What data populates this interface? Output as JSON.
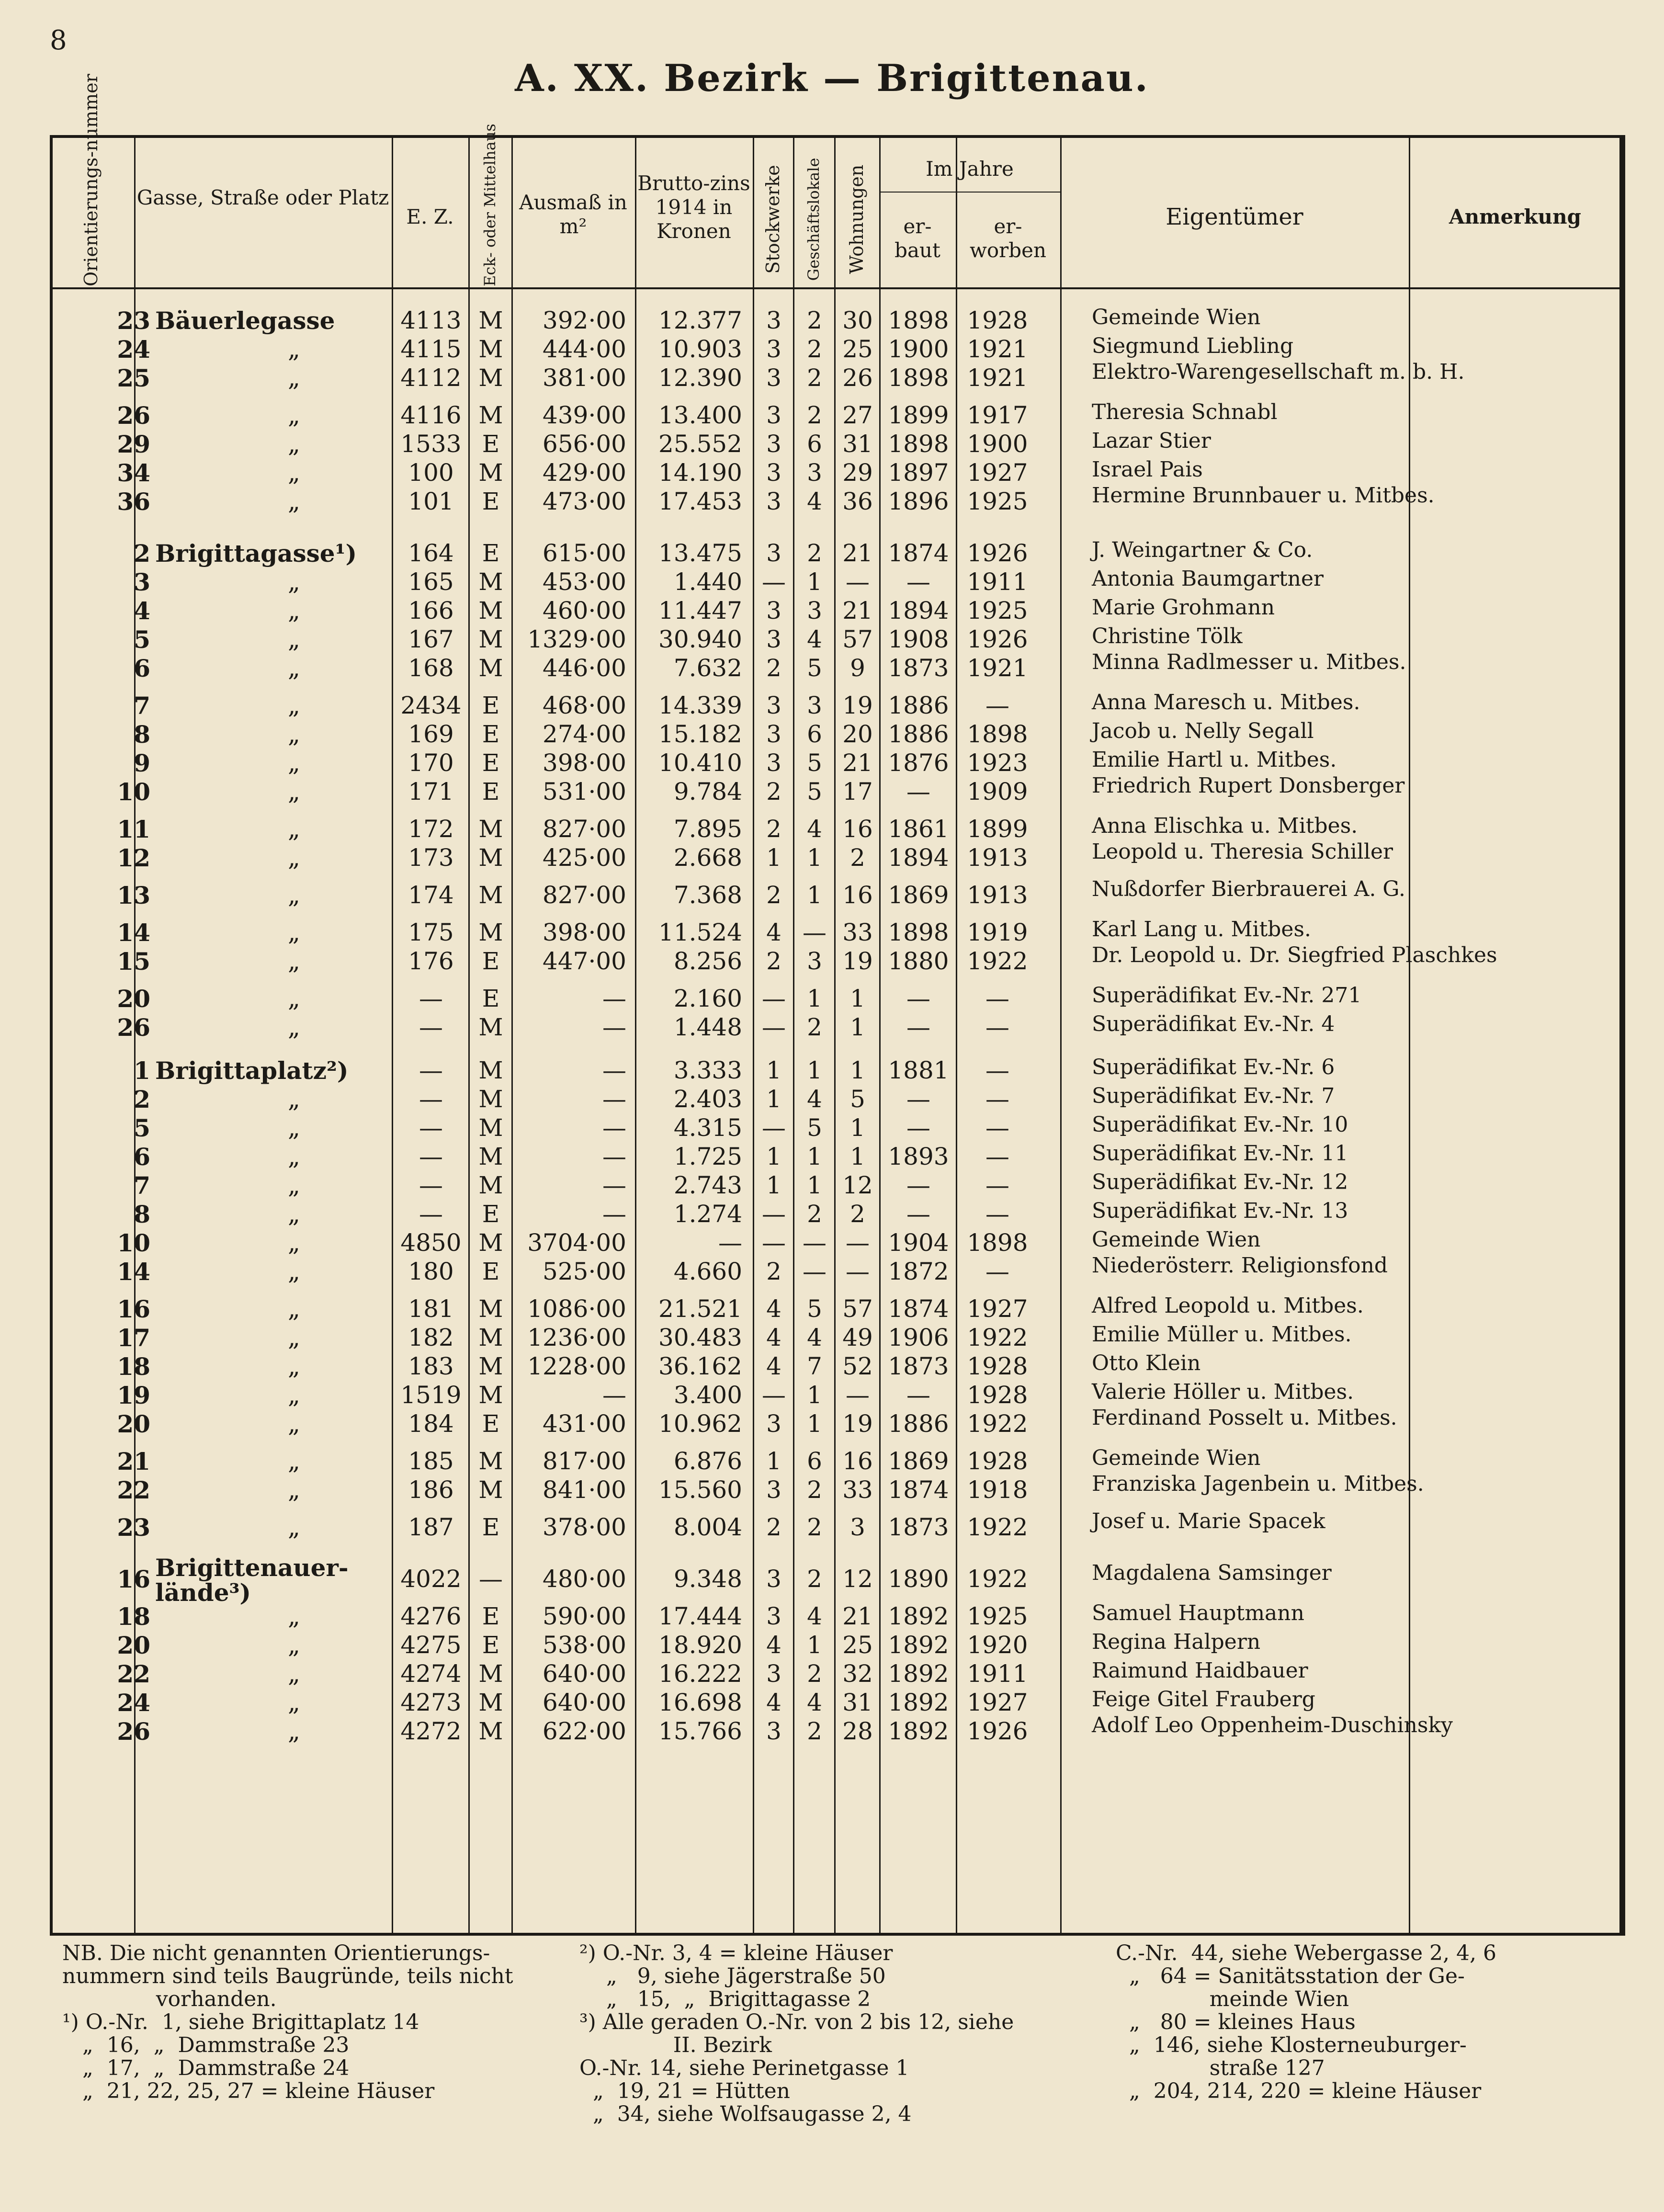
{
  "page": {
    "number": "8",
    "title": "A.  XX. Bezirk — Brigittenau."
  },
  "header": {
    "orientation": "Orientierungs-nummer",
    "street": "Gasse, Straße oder Platz",
    "ez": "E. Z.",
    "eck": "Eck- oder Mittelhaus",
    "area": "Ausmaß in m²",
    "zins": "Brutto-zins 1914 in Kronen",
    "stock": "Stockwerke",
    "geschaeft": "Geschäftslokale",
    "wohnungen": "Wohnungen",
    "im_jahre": "Im Jahre",
    "erbaut": "er-baut",
    "erworben": "er-worben",
    "eigentuemer": "Eigentümer",
    "anmerkung": "Anmerkung"
  },
  "rows": [
    {
      "nr": "23",
      "street": "Bäuerlegasse",
      "ez": "4113",
      "em": "M",
      "area": "392·00",
      "zins": "12.377",
      "st": "3",
      "gl": "2",
      "wo": "30",
      "erb": "1898",
      "erw": "1928",
      "owner": "Gemeinde Wien"
    },
    {
      "nr": "24",
      "street": "„",
      "ez": "4115",
      "em": "M",
      "area": "444·00",
      "zins": "10.903",
      "st": "3",
      "gl": "2",
      "wo": "25",
      "erb": "1900",
      "erw": "1921",
      "owner": "Siegmund Liebling"
    },
    {
      "nr": "25",
      "street": "„",
      "ez": "4112",
      "em": "M",
      "area": "381·00",
      "zins": "12.390",
      "st": "3",
      "gl": "2",
      "wo": "26",
      "erb": "1898",
      "erw": "1921",
      "owner": "Elektro-Warengesellschaft m. b. H."
    },
    {
      "nr": "26",
      "street": "„",
      "ez": "4116",
      "em": "M",
      "area": "439·00",
      "zins": "13.400",
      "st": "3",
      "gl": "2",
      "wo": "27",
      "erb": "1899",
      "erw": "1917",
      "owner": "Theresia Schnabl"
    },
    {
      "nr": "29",
      "street": "„",
      "ez": "1533",
      "em": "E",
      "area": "656·00",
      "zins": "25.552",
      "st": "3",
      "gl": "6",
      "wo": "31",
      "erb": "1898",
      "erw": "1900",
      "owner": "Lazar Stier"
    },
    {
      "nr": "34",
      "street": "„",
      "ez": "100",
      "em": "M",
      "area": "429·00",
      "zins": "14.190",
      "st": "3",
      "gl": "3",
      "wo": "29",
      "erb": "1897",
      "erw": "1927",
      "owner": "Israel Pais"
    },
    {
      "nr": "36",
      "street": "„",
      "ez": "101",
      "em": "E",
      "area": "473·00",
      "zins": "17.453",
      "st": "3",
      "gl": "4",
      "wo": "36",
      "erb": "1896",
      "erw": "1925",
      "owner": "Hermine Brunnbauer u. Mitbes."
    },
    {
      "nr": "2",
      "street": "Brigittagasse¹)",
      "ez": "164",
      "em": "E",
      "area": "615·00",
      "zins": "13.475",
      "st": "3",
      "gl": "2",
      "wo": "21",
      "erb": "1874",
      "erw": "1926",
      "owner": "J. Weingartner & Co."
    },
    {
      "nr": "3",
      "street": "„",
      "ez": "165",
      "em": "M",
      "area": "453·00",
      "zins": "1.440",
      "st": "—",
      "gl": "1",
      "wo": "—",
      "erb": "—",
      "erw": "1911",
      "owner": "Antonia Baumgartner"
    },
    {
      "nr": "4",
      "street": "„",
      "ez": "166",
      "em": "M",
      "area": "460·00",
      "zins": "11.447",
      "st": "3",
      "gl": "3",
      "wo": "21",
      "erb": "1894",
      "erw": "1925",
      "owner": "Marie Grohmann"
    },
    {
      "nr": "5",
      "street": "„",
      "ez": "167",
      "em": "M",
      "area": "1329·00",
      "zins": "30.940",
      "st": "3",
      "gl": "4",
      "wo": "57",
      "erb": "1908",
      "erw": "1926",
      "owner": "Christine Tölk"
    },
    {
      "nr": "6",
      "street": "„",
      "ez": "168",
      "em": "M",
      "area": "446·00",
      "zins": "7.632",
      "st": "2",
      "gl": "5",
      "wo": "9",
      "erb": "1873",
      "erw": "1921",
      "owner": "Minna Radlmesser u. Mitbes."
    },
    {
      "nr": "7",
      "street": "„",
      "ez": "2434",
      "em": "E",
      "area": "468·00",
      "zins": "14.339",
      "st": "3",
      "gl": "3",
      "wo": "19",
      "erb": "1886",
      "erw": "—",
      "owner": "Anna Maresch u. Mitbes."
    },
    {
      "nr": "8",
      "street": "„",
      "ez": "169",
      "em": "E",
      "area": "274·00",
      "zins": "15.182",
      "st": "3",
      "gl": "6",
      "wo": "20",
      "erb": "1886",
      "erw": "1898",
      "owner": "Jacob u. Nelly Segall"
    },
    {
      "nr": "9",
      "street": "„",
      "ez": "170",
      "em": "E",
      "area": "398·00",
      "zins": "10.410",
      "st": "3",
      "gl": "5",
      "wo": "21",
      "erb": "1876",
      "erw": "1923",
      "owner": "Emilie Hartl u. Mitbes."
    },
    {
      "nr": "10",
      "street": "„",
      "ez": "171",
      "em": "E",
      "area": "531·00",
      "zins": "9.784",
      "st": "2",
      "gl": "5",
      "wo": "17",
      "erb": "—",
      "erw": "1909",
      "owner": "Friedrich Rupert Donsberger"
    },
    {
      "nr": "11",
      "street": "„",
      "ez": "172",
      "em": "M",
      "area": "827·00",
      "zins": "7.895",
      "st": "2",
      "gl": "4",
      "wo": "16",
      "erb": "1861",
      "erw": "1899",
      "owner": "Anna Elischka u. Mitbes."
    },
    {
      "nr": "12",
      "street": "„",
      "ez": "173",
      "em": "M",
      "area": "425·00",
      "zins": "2.668",
      "st": "1",
      "gl": "1",
      "wo": "2",
      "erb": "1894",
      "erw": "1913",
      "owner": "Leopold u. Theresia Schiller"
    },
    {
      "nr": "13",
      "street": "„",
      "ez": "174",
      "em": "M",
      "area": "827·00",
      "zins": "7.368",
      "st": "2",
      "gl": "1",
      "wo": "16",
      "erb": "1869",
      "erw": "1913",
      "owner": "Nußdorfer Bierbrauerei A. G."
    },
    {
      "nr": "14",
      "street": "„",
      "ez": "175",
      "em": "M",
      "area": "398·00",
      "zins": "11.524",
      "st": "4",
      "gl": "—",
      "wo": "33",
      "erb": "1898",
      "erw": "1919",
      "owner": "Karl Lang u. Mitbes."
    },
    {
      "nr": "15",
      "street": "„",
      "ez": "176",
      "em": "E",
      "area": "447·00",
      "zins": "8.256",
      "st": "2",
      "gl": "3",
      "wo": "19",
      "erb": "1880",
      "erw": "1922",
      "owner": "Dr. Leopold u. Dr. Siegfried Plaschkes"
    },
    {
      "nr": "20",
      "street": "„",
      "ez": "—",
      "em": "E",
      "area": "—",
      "zins": "2.160",
      "st": "—",
      "gl": "1",
      "wo": "1",
      "erb": "—",
      "erw": "—",
      "owner": "Superädifikat Ev.-Nr. 271"
    },
    {
      "nr": "26",
      "street": "„",
      "ez": "—",
      "em": "M",
      "area": "—",
      "zins": "1.448",
      "st": "—",
      "gl": "2",
      "wo": "1",
      "erb": "—",
      "erw": "—",
      "owner": "Superädifikat Ev.-Nr. 4"
    },
    {
      "nr": "1",
      "street": "Brigittaplatz²)",
      "ez": "—",
      "em": "M",
      "area": "—",
      "zins": "3.333",
      "st": "1",
      "gl": "1",
      "wo": "1",
      "erb": "1881",
      "erw": "—",
      "owner": "Superädifikat Ev.-Nr. 6"
    },
    {
      "nr": "2",
      "street": "„",
      "ez": "—",
      "em": "M",
      "area": "—",
      "zins": "2.403",
      "st": "1",
      "gl": "4",
      "wo": "5",
      "erb": "—",
      "erw": "—",
      "owner": "Superädifikat Ev.-Nr. 7"
    },
    {
      "nr": "5",
      "street": "„",
      "ez": "—",
      "em": "M",
      "area": "—",
      "zins": "4.315",
      "st": "—",
      "gl": "5",
      "wo": "1",
      "erb": "—",
      "erw": "—",
      "owner": "Superädifikat Ev.-Nr. 10"
    },
    {
      "nr": "6",
      "street": "„",
      "ez": "—",
      "em": "M",
      "area": "—",
      "zins": "1.725",
      "st": "1",
      "gl": "1",
      "wo": "1",
      "erb": "1893",
      "erw": "—",
      "owner": "Superädifikat Ev.-Nr. 11"
    },
    {
      "nr": "7",
      "street": "„",
      "ez": "—",
      "em": "M",
      "area": "—",
      "zins": "2.743",
      "st": "1",
      "gl": "1",
      "wo": "12",
      "erb": "—",
      "erw": "—",
      "owner": "Superädifikat Ev.-Nr. 12"
    },
    {
      "nr": "8",
      "street": "„",
      "ez": "—",
      "em": "E",
      "area": "—",
      "zins": "1.274",
      "st": "—",
      "gl": "2",
      "wo": "2",
      "erb": "—",
      "erw": "—",
      "owner": "Superädifikat Ev.-Nr. 13"
    },
    {
      "nr": "10",
      "street": "„",
      "ez": "4850",
      "em": "M",
      "area": "3704·00",
      "zins": "—",
      "st": "—",
      "gl": "—",
      "wo": "—",
      "erb": "1904",
      "erw": "1898",
      "owner": "Gemeinde Wien"
    },
    {
      "nr": "14",
      "street": "„",
      "ez": "180",
      "em": "E",
      "area": "525·00",
      "zins": "4.660",
      "st": "2",
      "gl": "—",
      "wo": "—",
      "erb": "1872",
      "erw": "—",
      "owner": "Niederösterr. Religionsfond"
    },
    {
      "nr": "16",
      "street": "„",
      "ez": "181",
      "em": "M",
      "area": "1086·00",
      "zins": "21.521",
      "st": "4",
      "gl": "5",
      "wo": "57",
      "erb": "1874",
      "erw": "1927",
      "owner": "Alfred Leopold u. Mitbes."
    },
    {
      "nr": "17",
      "street": "„",
      "ez": "182",
      "em": "M",
      "area": "1236·00",
      "zins": "30.483",
      "st": "4",
      "gl": "4",
      "wo": "49",
      "erb": "1906",
      "erw": "1922",
      "owner": "Emilie Müller u. Mitbes."
    },
    {
      "nr": "18",
      "street": "„",
      "ez": "183",
      "em": "M",
      "area": "1228·00",
      "zins": "36.162",
      "st": "4",
      "gl": "7",
      "wo": "52",
      "erb": "1873",
      "erw": "1928",
      "owner": "Otto Klein"
    },
    {
      "nr": "19",
      "street": "„",
      "ez": "1519",
      "em": "M",
      "area": "—",
      "zins": "3.400",
      "st": "—",
      "gl": "1",
      "wo": "—",
      "erb": "—",
      "erw": "1928",
      "owner": "Valerie Höller u. Mitbes."
    },
    {
      "nr": "20",
      "street": "„",
      "ez": "184",
      "em": "E",
      "area": "431·00",
      "zins": "10.962",
      "st": "3",
      "gl": "1",
      "wo": "19",
      "erb": "1886",
      "erw": "1922",
      "owner": "Ferdinand Posselt u. Mitbes."
    },
    {
      "nr": "21",
      "street": "„",
      "ez": "185",
      "em": "M",
      "area": "817·00",
      "zins": "6.876",
      "st": "1",
      "gl": "6",
      "wo": "16",
      "erb": "1869",
      "erw": "1928",
      "owner": "Gemeinde Wien"
    },
    {
      "nr": "22",
      "street": "„",
      "ez": "186",
      "em": "M",
      "area": "841·00",
      "zins": "15.560",
      "st": "3",
      "gl": "2",
      "wo": "33",
      "erb": "1874",
      "erw": "1918",
      "owner": "Franziska Jagenbein u. Mitbes."
    },
    {
      "nr": "23",
      "street": "„",
      "ez": "187",
      "em": "E",
      "area": "378·00",
      "zins": "8.004",
      "st": "2",
      "gl": "2",
      "wo": "3",
      "erb": "1873",
      "erw": "1922",
      "owner": "Josef u. Marie Spacek"
    },
    {
      "nr": "16",
      "street": "Brigittenauer-lände³)",
      "ez": "4022",
      "em": "—",
      "area": "480·00",
      "zins": "9.348",
      "st": "3",
      "gl": "2",
      "wo": "12",
      "erb": "1890",
      "erw": "1922",
      "owner": "Magdalena Samsinger"
    },
    {
      "nr": "18",
      "street": "„",
      "ez": "4276",
      "em": "E",
      "area": "590·00",
      "zins": "17.444",
      "st": "3",
      "gl": "4",
      "wo": "21",
      "erb": "1892",
      "erw": "1925",
      "owner": "Samuel Hauptmann"
    },
    {
      "nr": "20",
      "street": "„",
      "ez": "4275",
      "em": "E",
      "area": "538·00",
      "zins": "18.920",
      "st": "4",
      "gl": "1",
      "wo": "25",
      "erb": "1892",
      "erw": "1920",
      "owner": "Regina Halpern"
    },
    {
      "nr": "22",
      "street": "„",
      "ez": "4274",
      "em": "M",
      "area": "640·00",
      "zins": "16.222",
      "st": "3",
      "gl": "2",
      "wo": "32",
      "erb": "1892",
      "erw": "1911",
      "owner": "Raimund Haidbauer"
    },
    {
      "nr": "24",
      "street": "„",
      "ez": "4273",
      "em": "M",
      "area": "640·00",
      "zins": "16.698",
      "st": "4",
      "gl": "4",
      "wo": "31",
      "erb": "1892",
      "erw": "1927",
      "owner": "Feige Gitel Frauberg"
    },
    {
      "nr": "26",
      "street": "„",
      "ez": "4272",
      "em": "M",
      "area": "622·00",
      "zins": "15.766",
      "st": "3",
      "gl": "2",
      "wo": "28",
      "erb": "1892",
      "erw": "1926",
      "owner": "Adolf Leo Oppenheim-Duschinsky"
    }
  ],
  "footnotes": {
    "col1": [
      "NB. Die nicht genannten Orientierungs-",
      "nummern sind teils Baugründe, teils nicht",
      "              vorhanden.",
      "¹) O.-Nr.  1, siehe Brigittaplatz 14",
      "   „  16,  „  Dammstraße 23",
      "   „  17,  „  Dammstraße 24",
      "   „  21, 22, 25, 27 = kleine Häuser"
    ],
    "col2": [
      "²) O.-Nr. 3, 4 = kleine Häuser",
      "    „   9, siehe Jägerstraße 50",
      "    „   15,  „  Brigittagasse 2",
      "³) Alle geraden O.-Nr. von 2 bis 12, siehe",
      "              II. Bezirk",
      "O.-Nr. 14, siehe Perinetgasse 1",
      "  „  19, 21 = Hütten",
      "  „  34, siehe Wolfsaugasse 2, 4"
    ],
    "col3": [
      "C.-Nr.  44, siehe Webergasse 2, 4, 6",
      "  „   64 = Sanitätsstation der Ge-",
      "              meinde Wien",
      "  „   80 = kleines Haus",
      "  „  146, siehe Klosterneuburger-",
      "              straße 127",
      "  „  204, 214, 220 = kleine Häuser"
    ]
  }
}
